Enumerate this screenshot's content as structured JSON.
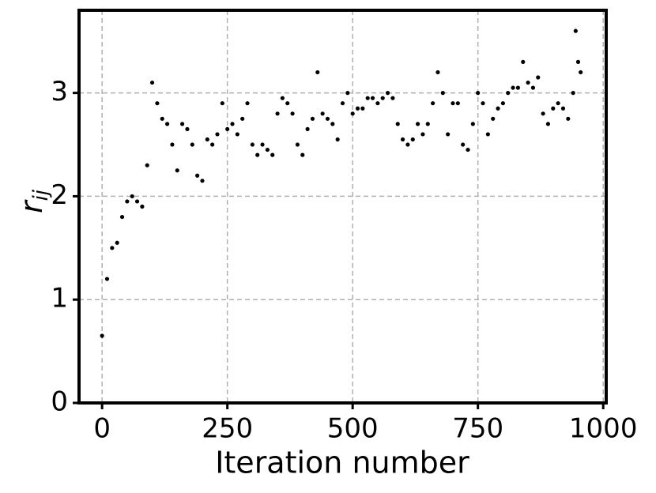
{
  "chart_data": {
    "type": "scatter",
    "x_label": "Iteration number",
    "y_label": "r",
    "y_label_sub": "ij",
    "x": [
      0,
      10,
      20,
      30,
      40,
      50,
      60,
      70,
      80,
      90,
      100,
      110,
      120,
      130,
      140,
      150,
      160,
      170,
      180,
      190,
      200,
      210,
      220,
      230,
      240,
      250,
      260,
      270,
      280,
      290,
      300,
      310,
      320,
      330,
      340,
      350,
      360,
      370,
      380,
      390,
      400,
      410,
      420,
      430,
      440,
      450,
      460,
      470,
      480,
      490,
      500,
      510,
      520,
      530,
      540,
      550,
      560,
      570,
      580,
      590,
      600,
      610,
      620,
      630,
      640,
      650,
      660,
      670,
      680,
      690,
      700,
      710,
      720,
      730,
      740,
      750,
      760,
      770,
      780,
      790,
      800,
      810,
      820,
      830,
      840,
      850,
      860,
      870,
      880,
      890,
      900,
      910,
      920,
      930,
      940,
      945,
      950,
      955
    ],
    "values": [
      0.65,
      1.2,
      1.5,
      1.55,
      1.8,
      1.95,
      2.0,
      1.95,
      1.9,
      2.3,
      3.1,
      2.9,
      2.75,
      2.7,
      2.5,
      2.25,
      2.7,
      2.65,
      2.5,
      2.2,
      2.15,
      2.55,
      2.5,
      2.6,
      2.9,
      2.65,
      2.7,
      2.6,
      2.75,
      2.9,
      2.5,
      2.4,
      2.5,
      2.45,
      2.4,
      2.8,
      2.95,
      2.9,
      2.8,
      2.5,
      2.4,
      2.65,
      2.75,
      3.2,
      2.8,
      2.75,
      2.7,
      2.55,
      2.9,
      3.0,
      2.8,
      2.85,
      2.85,
      2.95,
      2.95,
      2.9,
      2.95,
      3.0,
      2.95,
      2.7,
      2.55,
      2.5,
      2.55,
      2.7,
      2.6,
      2.7,
      2.9,
      3.2,
      3.0,
      2.6,
      2.9,
      2.9,
      2.5,
      2.45,
      2.7,
      3.0,
      2.9,
      2.6,
      2.75,
      2.85,
      2.9,
      3.0,
      3.05,
      3.05,
      3.3,
      3.1,
      3.05,
      3.15,
      2.8,
      2.7,
      2.85,
      2.9,
      2.85,
      2.75,
      3.0,
      3.6,
      3.3,
      3.2
    ],
    "color": "#000000",
    "xlim": [
      -46,
      1006
    ],
    "ylim": [
      0,
      3.8
    ],
    "xticks": [
      0,
      250,
      500,
      750,
      1000
    ],
    "yticks": [
      0,
      1,
      2,
      3
    ],
    "grid": true
  }
}
